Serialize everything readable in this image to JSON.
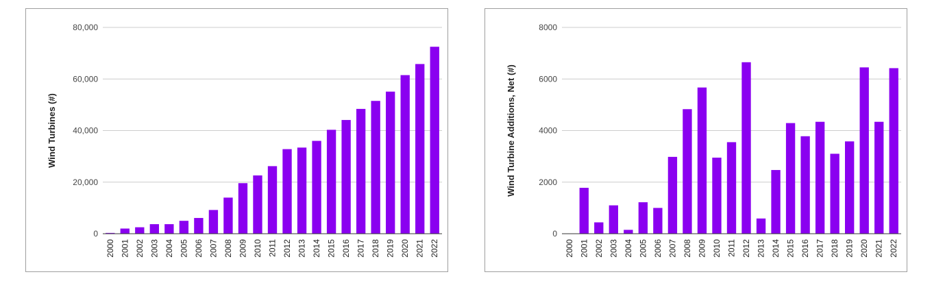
{
  "chart_data": [
    {
      "type": "bar",
      "title": "",
      "xlabel": "",
      "ylabel": "Wind Turbines (#)",
      "ylim": [
        0,
        80000
      ],
      "yticks": [
        "0",
        "20,000",
        "40,000",
        "60,000",
        "80,000"
      ],
      "ytick_values": [
        0,
        20000,
        40000,
        60000,
        80000
      ],
      "bar_color": "#8a00f0",
      "grid": true,
      "categories": [
        "2000",
        "2001",
        "2002",
        "2003",
        "2004",
        "2005",
        "2006",
        "2007",
        "2008",
        "2009",
        "2010",
        "2011",
        "2012",
        "2013",
        "2014",
        "2015",
        "2016",
        "2017",
        "2018",
        "2019",
        "2020",
        "2021",
        "2022"
      ],
      "values": [
        300,
        2000,
        2500,
        3700,
        3700,
        5000,
        6100,
        9200,
        14000,
        19600,
        22600,
        26200,
        32800,
        33400,
        36000,
        40300,
        44100,
        48400,
        51500,
        55100,
        61500,
        65800,
        72500
      ]
    },
    {
      "type": "bar",
      "title": "",
      "xlabel": "",
      "ylabel": "Wind Turbine Additions, Net (#)",
      "ylim": [
        0,
        8000
      ],
      "yticks": [
        "0",
        "2000",
        "4000",
        "6000",
        "8000"
      ],
      "ytick_values": [
        0,
        2000,
        4000,
        6000,
        8000
      ],
      "bar_color": "#8a00f0",
      "grid": true,
      "categories": [
        "2000",
        "2001",
        "2002",
        "2003",
        "2004",
        "2005",
        "2006",
        "2007",
        "2008",
        "2009",
        "2010",
        "2011",
        "2012",
        "2013",
        "2014",
        "2015",
        "2016",
        "2017",
        "2018",
        "2019",
        "2020",
        "2021",
        "2022"
      ],
      "values": [
        0,
        1780,
        440,
        1100,
        150,
        1220,
        1000,
        2980,
        4830,
        5670,
        2950,
        3550,
        6650,
        590,
        2470,
        4290,
        3780,
        4340,
        3100,
        3580,
        6450,
        4340,
        6420
      ]
    }
  ]
}
